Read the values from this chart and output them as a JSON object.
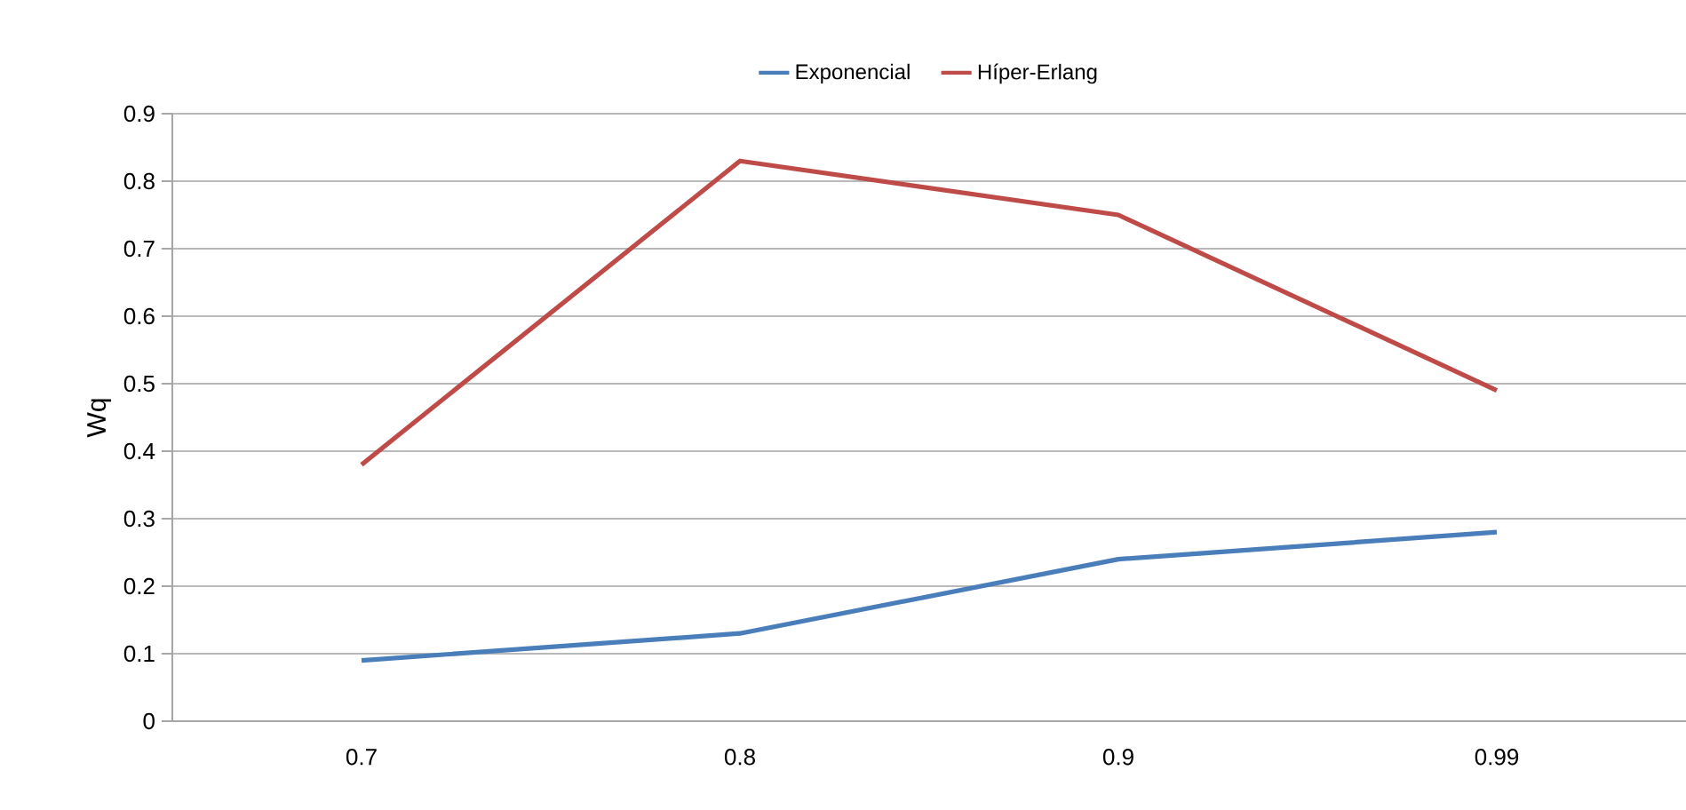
{
  "chart_data": {
    "type": "line",
    "ylabel": "Wq",
    "categories": [
      "0.7",
      "0.8",
      "0.9",
      "0.99"
    ],
    "series": [
      {
        "name": "Exponencial",
        "color": "#4a7ebb",
        "values": [
          0.09,
          0.13,
          0.24,
          0.28
        ]
      },
      {
        "name": "Híper-Erlang",
        "color": "#be4b48",
        "values": [
          0.38,
          0.83,
          0.75,
          0.49
        ]
      }
    ],
    "ylim": [
      0,
      0.9
    ],
    "yticks": [
      0,
      0.1,
      0.2,
      0.3,
      0.4,
      0.5,
      0.6,
      0.7,
      0.8,
      0.9
    ],
    "grid": "y",
    "legend": "top"
  }
}
